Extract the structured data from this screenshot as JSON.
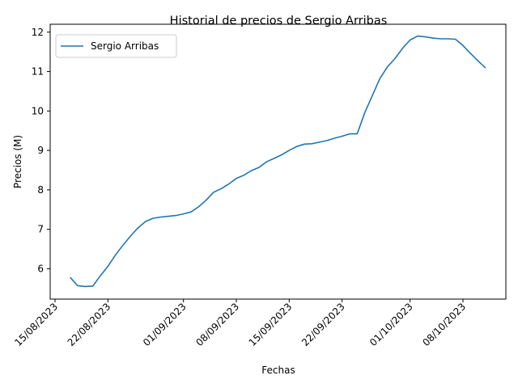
{
  "chart_data": {
    "type": "line",
    "title": "Historial de precios de Sergio Arribas",
    "xlabel": "Fechas",
    "ylabel": "Precios (M)",
    "x_ticks": [
      "15/08/2023",
      "22/08/2023",
      "01/09/2023",
      "08/09/2023",
      "15/09/2023",
      "22/09/2023",
      "01/10/2023",
      "08/10/2023"
    ],
    "y_ticks": [
      "6",
      "7",
      "8",
      "9",
      "10",
      "11",
      "12"
    ],
    "ylim": [
      5.23,
      12.2
    ],
    "legend_position": "upper-left",
    "grid": false,
    "series": [
      {
        "name": "Sergio Arribas",
        "color": "#1f77b4",
        "x": [
          "17/08/2023",
          "18/08/2023",
          "19/08/2023",
          "20/08/2023",
          "21/08/2023",
          "22/08/2023",
          "23/08/2023",
          "24/08/2023",
          "25/08/2023",
          "26/08/2023",
          "27/08/2023",
          "28/08/2023",
          "29/08/2023",
          "30/08/2023",
          "31/08/2023",
          "01/09/2023",
          "02/09/2023",
          "03/09/2023",
          "04/09/2023",
          "05/09/2023",
          "06/09/2023",
          "07/09/2023",
          "08/09/2023",
          "09/09/2023",
          "10/09/2023",
          "11/09/2023",
          "12/09/2023",
          "13/09/2023",
          "14/09/2023",
          "15/09/2023",
          "16/09/2023",
          "17/09/2023",
          "18/09/2023",
          "19/09/2023",
          "20/09/2023",
          "21/09/2023",
          "22/09/2023",
          "23/09/2023",
          "24/09/2023",
          "25/09/2023",
          "26/09/2023",
          "27/09/2023",
          "28/09/2023",
          "29/09/2023",
          "30/09/2023",
          "01/10/2023",
          "02/10/2023",
          "03/10/2023",
          "04/10/2023",
          "05/10/2023",
          "06/10/2023",
          "07/10/2023",
          "08/10/2023",
          "09/10/2023",
          "10/10/2023",
          "11/10/2023"
        ],
        "values": [
          5.78,
          5.57,
          5.55,
          5.56,
          5.82,
          6.06,
          6.35,
          6.6,
          6.83,
          7.04,
          7.2,
          7.28,
          7.31,
          7.33,
          7.35,
          7.39,
          7.44,
          7.57,
          7.74,
          7.94,
          8.03,
          8.15,
          8.29,
          8.37,
          8.49,
          8.57,
          8.71,
          8.8,
          8.89,
          9.0,
          9.1,
          9.16,
          9.17,
          9.21,
          9.25,
          9.31,
          9.36,
          9.42,
          9.42,
          9.96,
          10.39,
          10.82,
          11.12,
          11.33,
          11.59,
          11.8,
          11.9,
          11.88,
          11.85,
          11.83,
          11.83,
          11.82,
          11.66,
          11.46,
          11.27,
          11.09
        ]
      }
    ]
  }
}
